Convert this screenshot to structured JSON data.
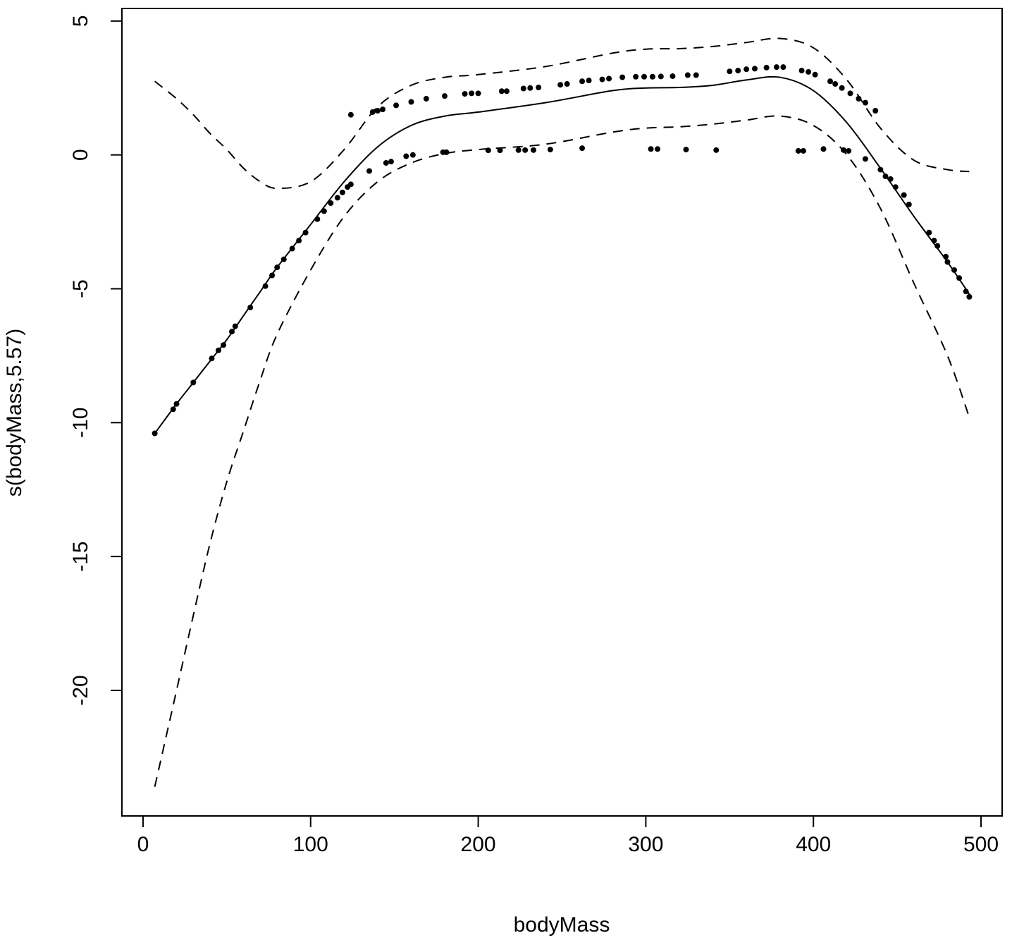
{
  "chart_data": {
    "type": "line",
    "xlabel": "bodyMass",
    "ylabel": "s(bodyMass,5.57)",
    "xlim": [
      -12.6,
      512.6
    ],
    "ylim": [
      -24.69,
      5.47
    ],
    "xticks": [
      0,
      100,
      200,
      300,
      400,
      500
    ],
    "yticks": [
      5,
      0,
      -5,
      -10,
      -15,
      -20
    ],
    "x": [
      7,
      20,
      30,
      40,
      50,
      60,
      70,
      80,
      100,
      120,
      140,
      160,
      180,
      200,
      240,
      280,
      300,
      320,
      340,
      360,
      380,
      400,
      420,
      440,
      460,
      480,
      493
    ],
    "series": [
      {
        "color": "#000000",
        "dash": false,
        "values": [
          -10.4,
          -9.3,
          -8.5,
          -7.7,
          -6.9,
          -6.0,
          -5.1,
          -4.2,
          -2.6,
          -1.0,
          0.3,
          1.1,
          1.45,
          1.6,
          1.95,
          2.4,
          2.5,
          2.52,
          2.6,
          2.8,
          2.9,
          2.4,
          1.2,
          -0.5,
          -2.3,
          -4.0,
          -5.2
        ]
      },
      {
        "color": "#000000",
        "dash": true,
        "values": [
          2.75,
          2.1,
          1.5,
          0.8,
          0.2,
          -0.5,
          -1.0,
          -1.25,
          -1.0,
          0.2,
          1.8,
          2.6,
          2.9,
          3.0,
          3.3,
          3.8,
          3.95,
          3.97,
          4.05,
          4.2,
          4.35,
          4.0,
          2.8,
          1.0,
          -0.2,
          -0.55,
          -0.62
        ]
      },
      {
        "color": "#000000",
        "dash": true,
        "values": [
          -23.6,
          -20.0,
          -17.2,
          -14.5,
          -12.2,
          -10.3,
          -8.4,
          -6.7,
          -4.3,
          -2.3,
          -1.0,
          -0.3,
          0.05,
          0.2,
          0.4,
          0.85,
          1.0,
          1.05,
          1.15,
          1.3,
          1.45,
          1.1,
          0.0,
          -2.0,
          -4.8,
          -7.5,
          -9.8
        ]
      }
    ],
    "points": {
      "color": "#000000",
      "x": [
        7,
        18,
        20,
        30,
        41,
        45,
        48,
        53,
        55,
        64,
        73,
        77,
        80,
        84,
        89,
        93,
        97,
        104,
        108,
        112,
        116,
        119,
        122,
        124,
        135,
        145,
        148,
        157,
        161,
        179,
        181,
        206,
        213,
        224,
        228,
        233,
        243,
        262,
        303,
        307,
        324,
        342,
        391,
        394,
        406,
        418,
        421,
        431,
        440,
        443,
        446,
        449,
        454,
        457,
        469,
        472,
        474,
        479,
        480,
        484,
        487,
        491,
        493,
        124,
        137,
        140,
        143,
        151,
        160,
        169,
        180,
        192,
        196,
        200,
        214,
        217,
        227,
        231,
        236,
        249,
        253,
        262,
        266,
        274,
        278,
        286,
        294,
        299,
        304,
        309,
        316,
        325,
        330,
        350,
        355,
        360,
        365,
        372,
        378,
        382,
        393,
        397,
        401,
        410,
        413,
        417,
        422,
        427,
        431,
        437
      ],
      "y": [
        -10.4,
        -9.5,
        -9.3,
        -8.5,
        -7.6,
        -7.3,
        -7.1,
        -6.6,
        -6.4,
        -5.7,
        -4.9,
        -4.5,
        -4.2,
        -3.9,
        -3.5,
        -3.2,
        -2.9,
        -2.4,
        -2.1,
        -1.8,
        -1.6,
        -1.4,
        -1.2,
        -1.1,
        -0.6,
        -0.3,
        -0.25,
        -0.05,
        0.0,
        0.1,
        0.1,
        0.17,
        0.17,
        0.18,
        0.18,
        0.18,
        0.2,
        0.25,
        0.22,
        0.22,
        0.2,
        0.18,
        0.15,
        0.15,
        0.22,
        0.18,
        0.15,
        -0.15,
        -0.55,
        -0.8,
        -0.9,
        -1.2,
        -1.5,
        -1.85,
        -2.9,
        -3.2,
        -3.4,
        -3.8,
        -4.0,
        -4.3,
        -4.6,
        -5.1,
        -5.3,
        1.5,
        1.6,
        1.65,
        1.7,
        1.85,
        1.98,
        2.1,
        2.2,
        2.28,
        2.3,
        2.3,
        2.38,
        2.38,
        2.48,
        2.5,
        2.52,
        2.62,
        2.65,
        2.75,
        2.78,
        2.82,
        2.85,
        2.9,
        2.92,
        2.92,
        2.92,
        2.93,
        2.94,
        2.98,
        2.98,
        3.12,
        3.15,
        3.2,
        3.22,
        3.26,
        3.28,
        3.28,
        3.15,
        3.1,
        3.0,
        2.75,
        2.65,
        2.5,
        2.3,
        2.1,
        1.95,
        1.65
      ]
    }
  }
}
